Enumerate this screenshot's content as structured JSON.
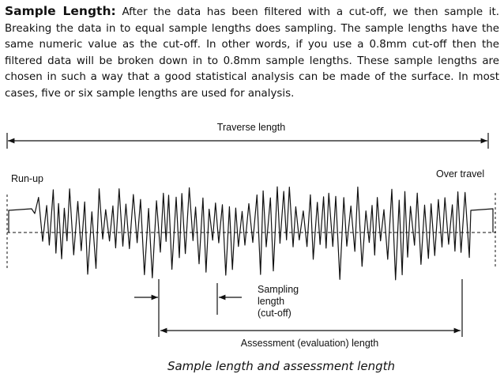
{
  "paragraph": {
    "heading": "Sample Length:",
    "text": "After the data has been filtered with a cut-off, we then sample it. Breaking the data in to equal sample lengths does sampling. The sample lengths have the same numeric value as the cut-off. In other words, if you use a 0.8mm cut-off then the filtered data will be broken down in to 0.8mm sample lengths. These sample lengths are chosen in such a way that a good statistical analysis can be made of the surface. In most cases, five or six sample lengths are used for analysis."
  },
  "diagram": {
    "traverse_label": "Traverse length",
    "runup_label": "Run-up",
    "overtravel_label": "Over travel",
    "sampling_label_lines": [
      "Sampling",
      "length",
      "(cut-off)"
    ],
    "assessment_label": "Assessment (evaluation) length",
    "caption": "Sample length and assessment length"
  }
}
